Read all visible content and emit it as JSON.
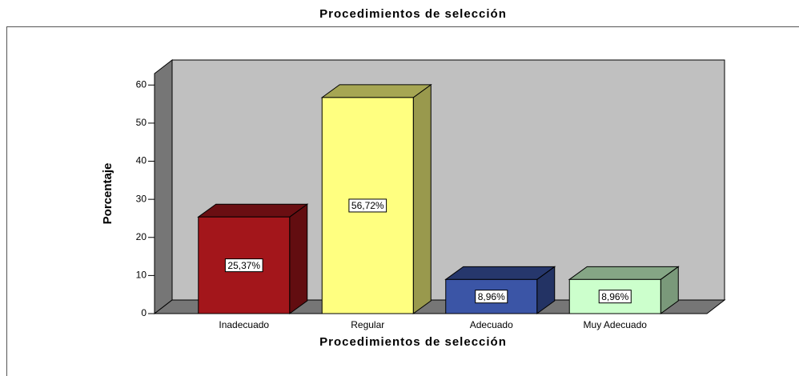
{
  "chart_data": {
    "type": "bar3d",
    "title": "Procedimientos de selección",
    "x_label": "Procedimientos de selección",
    "y_label": "Porcentaje",
    "categories": [
      "Inadecuado",
      "Regular",
      "Adecuado",
      "Muy Adecuado"
    ],
    "values": [
      25.37,
      56.72,
      8.96,
      8.96
    ],
    "value_labels": [
      "25,37%",
      "56,72%",
      "8,96%",
      "8,96%"
    ],
    "colors": [
      "#a3161b",
      "#ffff80",
      "#3b55a6",
      "#ccffcc"
    ],
    "ylim": [
      0,
      63
    ],
    "yticks": [
      0,
      10,
      20,
      30,
      40,
      50,
      60
    ]
  }
}
